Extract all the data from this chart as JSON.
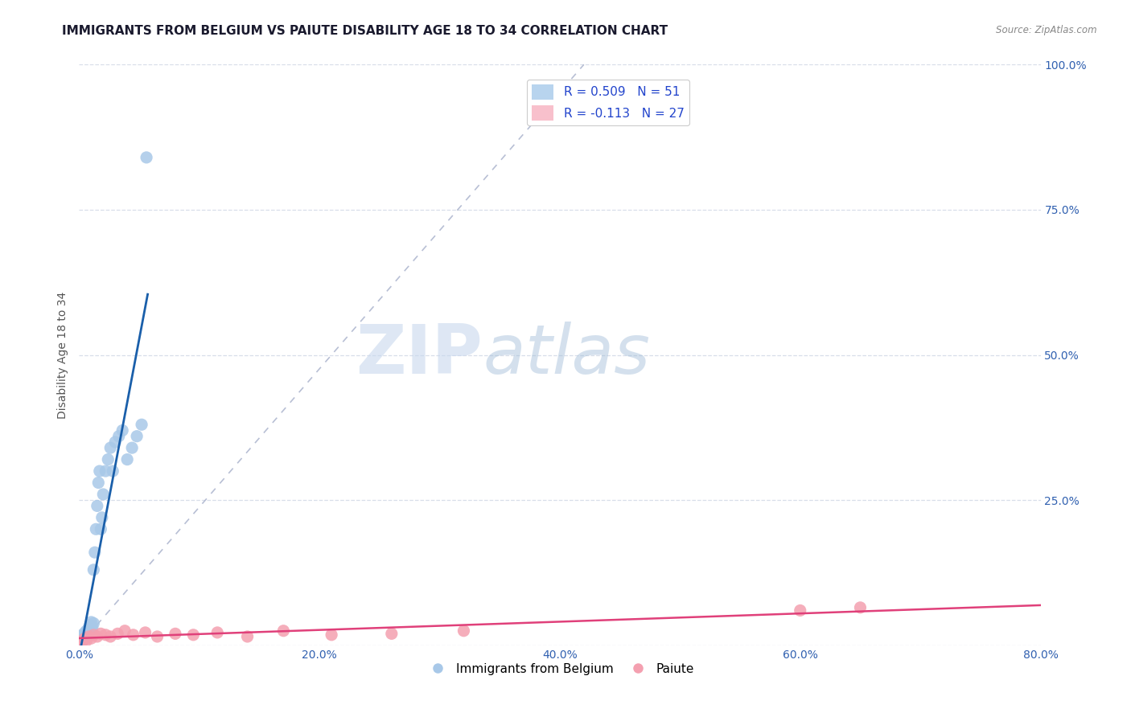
{
  "title": "IMMIGRANTS FROM BELGIUM VS PAIUTE DISABILITY AGE 18 TO 34 CORRELATION CHART",
  "source": "Source: ZipAtlas.com",
  "ylabel": "Disability Age 18 to 34",
  "xlim": [
    0.0,
    0.8
  ],
  "ylim": [
    0.0,
    1.0
  ],
  "xticks": [
    0.0,
    0.2,
    0.4,
    0.6,
    0.8
  ],
  "xticklabels": [
    "0.0%",
    "20.0%",
    "40.0%",
    "60.0%",
    "80.0%"
  ],
  "yticks": [
    0.0,
    0.25,
    0.5,
    0.75,
    1.0
  ],
  "yticklabels": [
    "",
    "25.0%",
    "50.0%",
    "75.0%",
    "100.0%"
  ],
  "legend_entries": [
    "Immigrants from Belgium",
    "Paiute"
  ],
  "R_belgium": 0.509,
  "N_belgium": 51,
  "R_paiute": -0.113,
  "N_paiute": 27,
  "belgium_color": "#a8c8e8",
  "paiute_color": "#f4a0b0",
  "belgium_line_color": "#1a5faa",
  "paiute_line_color": "#e0407a",
  "ref_line_color": "#b0b8d0",
  "belgium_x": [
    0.001,
    0.001,
    0.001,
    0.001,
    0.002,
    0.002,
    0.002,
    0.003,
    0.003,
    0.003,
    0.003,
    0.004,
    0.004,
    0.004,
    0.005,
    0.005,
    0.005,
    0.006,
    0.006,
    0.006,
    0.007,
    0.007,
    0.008,
    0.008,
    0.009,
    0.009,
    0.01,
    0.01,
    0.011,
    0.012,
    0.012,
    0.013,
    0.014,
    0.015,
    0.016,
    0.017,
    0.018,
    0.019,
    0.02,
    0.022,
    0.024,
    0.026,
    0.028,
    0.03,
    0.033,
    0.036,
    0.04,
    0.044,
    0.048,
    0.052,
    0.056
  ],
  "belgium_y": [
    0.005,
    0.008,
    0.01,
    0.012,
    0.006,
    0.01,
    0.015,
    0.008,
    0.012,
    0.016,
    0.018,
    0.01,
    0.015,
    0.02,
    0.012,
    0.018,
    0.022,
    0.015,
    0.02,
    0.025,
    0.018,
    0.025,
    0.02,
    0.03,
    0.025,
    0.035,
    0.03,
    0.04,
    0.03,
    0.038,
    0.13,
    0.16,
    0.2,
    0.24,
    0.28,
    0.3,
    0.2,
    0.22,
    0.26,
    0.3,
    0.32,
    0.34,
    0.3,
    0.35,
    0.36,
    0.37,
    0.32,
    0.34,
    0.36,
    0.38,
    0.84
  ],
  "paiute_x": [
    0.001,
    0.003,
    0.004,
    0.005,
    0.006,
    0.008,
    0.01,
    0.012,
    0.015,
    0.018,
    0.022,
    0.026,
    0.032,
    0.038,
    0.045,
    0.055,
    0.065,
    0.08,
    0.095,
    0.115,
    0.14,
    0.17,
    0.21,
    0.26,
    0.32,
    0.6,
    0.65
  ],
  "paiute_y": [
    0.005,
    0.008,
    0.01,
    0.012,
    0.008,
    0.015,
    0.012,
    0.018,
    0.015,
    0.02,
    0.018,
    0.015,
    0.02,
    0.025,
    0.018,
    0.022,
    0.015,
    0.02,
    0.018,
    0.022,
    0.015,
    0.025,
    0.018,
    0.02,
    0.025,
    0.06,
    0.065
  ],
  "watermark_zip": "ZIP",
  "watermark_atlas": "atlas",
  "background_color": "#ffffff",
  "title_fontsize": 11,
  "axis_label_fontsize": 10,
  "tick_fontsize": 10,
  "legend_fontsize": 11
}
